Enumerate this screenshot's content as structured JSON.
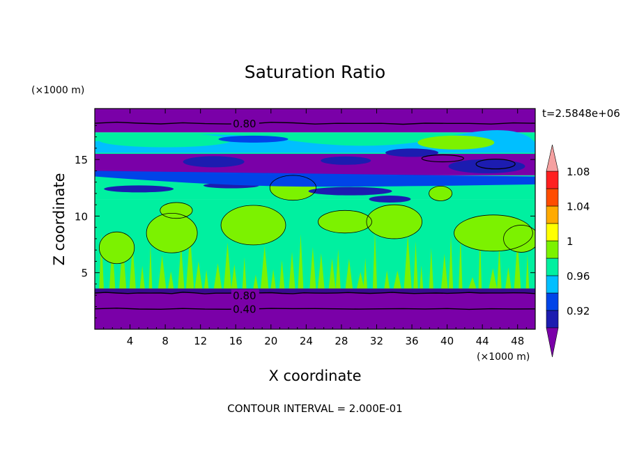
{
  "chart_data": {
    "type": "heatmap",
    "title": "Saturation Ratio",
    "xlabel": "X coordinate",
    "ylabel": "Z coordinate",
    "x_unit": "(×1000 m)",
    "y_unit": "(×1000 m)",
    "time_label": "t=2.5848e+06",
    "footer": "CONTOUR INTERVAL = 2.000E-01",
    "xlim": [
      0,
      50
    ],
    "ylim": [
      0,
      19.5
    ],
    "x_ticks": [
      4,
      8,
      12,
      16,
      20,
      24,
      28,
      32,
      36,
      40,
      44,
      48
    ],
    "y_ticks": [
      5,
      10,
      15
    ],
    "x_tick_labels": [
      "4",
      "8",
      "12",
      "16",
      "20",
      "24",
      "28",
      "32",
      "36",
      "40",
      "44",
      "48"
    ],
    "y_tick_labels": [
      "5",
      "10",
      "15"
    ],
    "contour_labels": [
      {
        "text": "0.80",
        "x": 17.0,
        "z": 18.1
      },
      {
        "text": "0.80",
        "x": 17.0,
        "z": 2.9
      },
      {
        "text": "0.40",
        "x": 17.0,
        "z": 1.7
      }
    ],
    "colorbar": {
      "levels": [
        0.9,
        0.92,
        0.94,
        0.96,
        0.98,
        1.0,
        1.02,
        1.04,
        1.06,
        1.08,
        1.1
      ],
      "colors": [
        "#7a00a8",
        "#1c1cb0",
        "#0044e8",
        "#00bfff",
        "#00f0a0",
        "#7cf200",
        "#ffff00",
        "#ffaa00",
        "#ff4d00",
        "#ff2020",
        "#f5a0a0"
      ],
      "tick_labels": [
        "0.92",
        "0.96",
        "1",
        "1.04",
        "1.08"
      ]
    },
    "bands": [
      {
        "z": [
          0,
          3.2
        ],
        "color": "#7a00a8"
      },
      {
        "z": [
          3.2,
          3.6
        ],
        "color": "#3a0a90"
      },
      {
        "z": [
          3.6,
          11.5
        ],
        "color": "#00f0a0"
      },
      {
        "z": [
          11.5,
          13.6
        ],
        "color": "#00f0a0"
      },
      {
        "z": [
          13.6,
          15.5
        ],
        "color": "#7a00a8"
      },
      {
        "z": [
          15.5,
          17.4
        ],
        "color": "#00f0a0"
      },
      {
        "z": [
          17.4,
          19.5
        ],
        "color": "#7a00a8"
      }
    ]
  }
}
